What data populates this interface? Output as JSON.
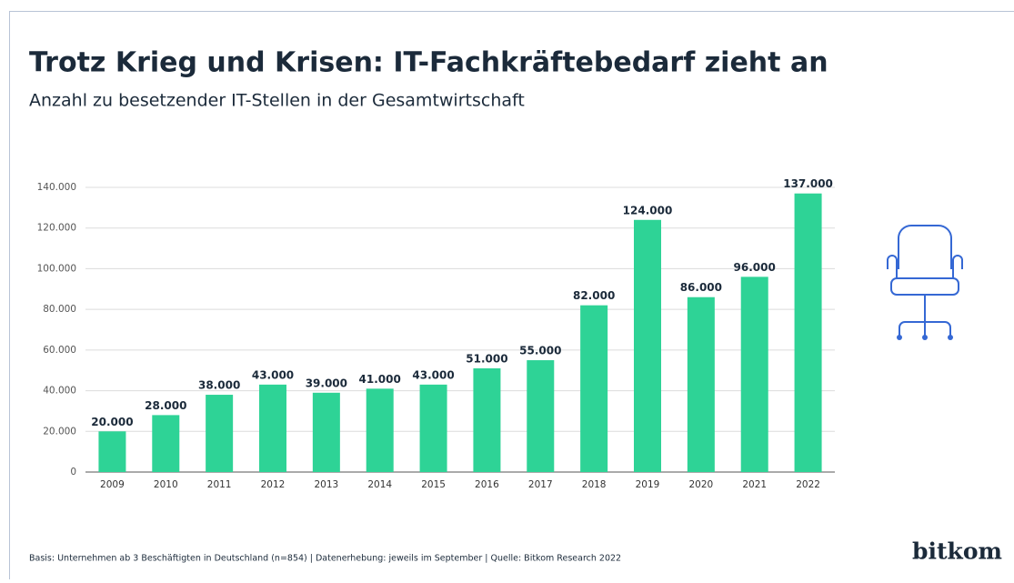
{
  "chart_data": {
    "type": "bar",
    "title": "Trotz Krieg und Krisen: IT-Fachkräftebedarf zieht an",
    "subtitle": "Anzahl zu besetzender IT-Stellen in der Gesamtwirtschaft",
    "categories": [
      "2009",
      "2010",
      "2011",
      "2012",
      "2013",
      "2014",
      "2015",
      "2016",
      "2017",
      "2018",
      "2019",
      "2020",
      "2021",
      "2022"
    ],
    "values": [
      20000,
      28000,
      38000,
      43000,
      39000,
      41000,
      43000,
      51000,
      55000,
      82000,
      124000,
      86000,
      96000,
      137000
    ],
    "value_labels": [
      "20.000",
      "28.000",
      "38.000",
      "43.000",
      "39.000",
      "41.000",
      "43.000",
      "51.000",
      "55.000",
      "82.000",
      "124.000",
      "86.000",
      "96.000",
      "137.000"
    ],
    "color": "#2ed396",
    "ylim": [
      0,
      140000
    ],
    "yticks": [
      0,
      {
        "value": 20000,
        "label": "20.000"
      },
      {
        "value": 40000,
        "label": "40.000"
      },
      {
        "value": 60000,
        "label": "60.000"
      },
      {
        "value": 80000,
        "label": "80.000"
      },
      {
        "value": 100000,
        "label": "100.000"
      },
      {
        "value": 120000,
        "label": "120.000"
      },
      {
        "value": 140000,
        "label": "140.000"
      }
    ],
    "grid": true,
    "footnote": "Basis: Unternehmen ab 3 Beschäftigten in Deutschland (n=854) | Datenerhebung: jeweils im September | Quelle: Bitkom Research 2022",
    "source_logo": "bitkom"
  }
}
